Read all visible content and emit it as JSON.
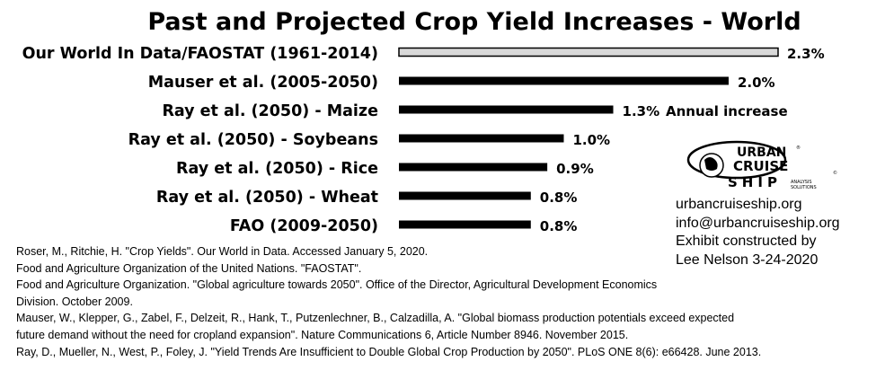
{
  "chart_data": {
    "type": "bar",
    "orientation": "horizontal",
    "title": "Past and Projected Crop Yield Increases - World",
    "categories": [
      "Our World In Data/FAOSTAT (1961-2014)",
      "Mauser et al. (2005-2050)",
      "Ray et al. (2050) - Maize",
      "Ray et al. (2050) - Soybeans",
      "Ray et al. (2050) - Rice",
      "Ray et al. (2050) - Wheat",
      "FAO (2009-2050)"
    ],
    "values": [
      2.3,
      2.0,
      1.3,
      1.0,
      0.9,
      0.8,
      0.8
    ],
    "value_labels": [
      "2.3%",
      "2.0%",
      "1.3%",
      "1.0%",
      "0.9%",
      "0.8%",
      "0.8%"
    ],
    "annotation": "Annual increase",
    "xlim": [
      0,
      2.3
    ],
    "grid": false,
    "bar_colors": [
      "#d9d9d9",
      "#000000",
      "#000000",
      "#000000",
      "#000000",
      "#000000",
      "#000000"
    ]
  },
  "logo": {
    "top_text": "URBAN",
    "mid_text": "CRUISE",
    "bottom_text": "SHIP",
    "tag_line1": "ANALYSIS",
    "tag_line2": "SOLUTIONS",
    "mark": "®",
    "copyright": "©"
  },
  "contact": {
    "website": "urbancruiseship.org",
    "email": "info@urbancruiseship.org",
    "credit_line1": "Exhibit constructed by",
    "credit_line2": "Lee Nelson 3-24-2020"
  },
  "references": [
    "Roser, M., Ritchie, H. \"Crop Yields\". Our World in Data. Accessed January 5, 2020.",
    "Food and Agriculture Organization of the United Nations. \"FAOSTAT\".",
    "Food and Agriculture Organization. \"Global agriculture towards 2050\". Office of the Director, Agricultural Development Economics",
    "Division. October 2009.",
    "Mauser, W., Klepper, G., Zabel, F., Delzeit, R., Hank, T., Putzenlechner, B., Calzadilla, A. \"Global biomass production potentials exceed expected",
    "future demand without the need for cropland expansion\". Nature Communications 6, Article Number 8946. November 2015.",
    "Ray, D., Mueller, N., West, P., Foley, J. \"Yield Trends Are Insufficient to Double Global Crop Production by 2050\". PLoS ONE 8(6): e66428. June 2013."
  ]
}
